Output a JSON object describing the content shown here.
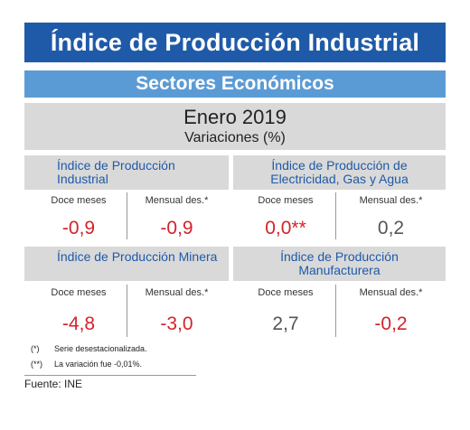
{
  "title": "Índice de Producción Industrial",
  "subtitle": "Sectores Económicos",
  "period": "Enero 2019",
  "unit": "Variaciones (%)",
  "cards": [
    {
      "title": "Índice de Producción Industrial",
      "col1": "Doce meses",
      "col2": "Mensual des.*",
      "value1": "-0,9",
      "value2": "-0,9"
    },
    {
      "title": "Índice de Producción de Electricidad, Gas y Agua",
      "col1": "Doce meses",
      "col2": "Mensual des.*",
      "value1": "0,0**",
      "value2": "0,2"
    },
    {
      "title": "Índice de Producción Minera",
      "col1": "Doce meses",
      "col2": "Mensual des.*",
      "value1": "-4,8",
      "value2": "-3,0"
    },
    {
      "title": "Índice de Producción Manufacturera",
      "col1": "Doce meses",
      "col2": "Mensual des.*",
      "value1": "2,7",
      "value2": "-0,2"
    }
  ],
  "notes": [
    {
      "mark": "(*)",
      "text": "Serie desestacionalizada."
    },
    {
      "mark": "(**)",
      "text": "La variación fue -0,01%."
    }
  ],
  "source": "Fuente: INE",
  "colors": {
    "title_bg": "#1f5aa8",
    "subtitle_bg": "#5b9bd5",
    "panel_bg": "#d9d9d9",
    "negative": "#d2232a",
    "neutral": "#555555"
  }
}
